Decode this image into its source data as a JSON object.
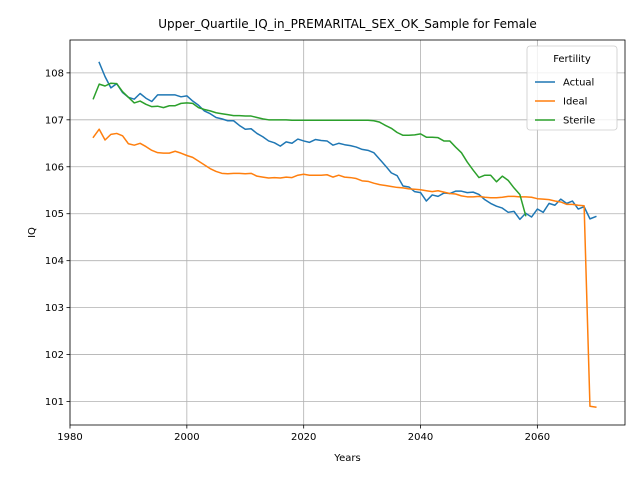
{
  "chart_data": {
    "type": "line",
    "title": "Upper_Quartile_IQ_in_PREMARITAL_SEX_OK_Sample for Female",
    "xlabel": "Years",
    "ylabel": "IQ",
    "xlim": [
      1980,
      2075
    ],
    "ylim": [
      100.5,
      108.7
    ],
    "x_ticks": [
      1980,
      2000,
      2020,
      2040,
      2060
    ],
    "y_ticks": [
      101,
      102,
      103,
      104,
      105,
      106,
      107,
      108
    ],
    "grid": true,
    "legend": {
      "title": "Fertility",
      "placement": "top-right"
    },
    "colors": {
      "Actual": "#1f77b4",
      "Ideal": "#ff7f0e",
      "Sterile": "#2ca02c"
    },
    "series": [
      {
        "name": "Actual",
        "x": [
          1985,
          1986,
          1987,
          1988,
          1989,
          1990,
          1991,
          1992,
          1993,
          1994,
          1995,
          1996,
          1997,
          1998,
          1999,
          2000,
          2001,
          2002,
          2003,
          2004,
          2005,
          2006,
          2007,
          2008,
          2009,
          2010,
          2011,
          2012,
          2013,
          2014,
          2015,
          2016,
          2017,
          2018,
          2019,
          2020,
          2021,
          2022,
          2023,
          2024,
          2025,
          2026,
          2027,
          2028,
          2029,
          2030,
          2031,
          2032,
          2033,
          2034,
          2035,
          2036,
          2037,
          2038,
          2039,
          2040,
          2041,
          2042,
          2043,
          2044,
          2045,
          2046,
          2047,
          2048,
          2049,
          2050,
          2051,
          2052,
          2053,
          2054,
          2055,
          2056,
          2057,
          2058,
          2059,
          2060,
          2061,
          2062,
          2063,
          2064,
          2065,
          2066,
          2067,
          2068,
          2069,
          2070
        ],
        "values": [
          108.22,
          107.92,
          107.68,
          107.77,
          107.58,
          107.48,
          107.44,
          107.56,
          107.46,
          107.39,
          107.53,
          107.53,
          107.53,
          107.53,
          107.49,
          107.51,
          107.4,
          107.31,
          107.19,
          107.13,
          107.05,
          107.02,
          106.98,
          106.98,
          106.88,
          106.8,
          106.81,
          106.71,
          106.64,
          106.55,
          106.51,
          106.44,
          106.53,
          106.5,
          106.59,
          106.55,
          106.52,
          106.58,
          106.56,
          106.55,
          106.46,
          106.5,
          106.47,
          106.45,
          106.42,
          106.37,
          106.35,
          106.3,
          106.16,
          106.02,
          105.87,
          105.81,
          105.59,
          105.57,
          105.47,
          105.45,
          105.27,
          105.4,
          105.37,
          105.44,
          105.43,
          105.48,
          105.48,
          105.45,
          105.46,
          105.41,
          105.3,
          105.22,
          105.16,
          105.12,
          105.03,
          105.05,
          104.88,
          105.01,
          104.93,
          105.1,
          105.03,
          105.22,
          105.18,
          105.31,
          105.22,
          105.27,
          105.1,
          105.15,
          104.89,
          104.94
        ]
      },
      {
        "name": "Ideal",
        "x": [
          1984,
          1985,
          1986,
          1987,
          1988,
          1989,
          1990,
          1991,
          1992,
          1993,
          1994,
          1995,
          1996,
          1997,
          1998,
          1999,
          2000,
          2001,
          2002,
          2003,
          2004,
          2005,
          2006,
          2007,
          2008,
          2009,
          2010,
          2011,
          2012,
          2013,
          2014,
          2015,
          2016,
          2017,
          2018,
          2019,
          2020,
          2021,
          2022,
          2023,
          2024,
          2025,
          2026,
          2027,
          2028,
          2029,
          2030,
          2031,
          2032,
          2033,
          2034,
          2035,
          2036,
          2037,
          2038,
          2039,
          2040,
          2041,
          2042,
          2043,
          2044,
          2045,
          2046,
          2047,
          2048,
          2049,
          2050,
          2051,
          2052,
          2053,
          2054,
          2055,
          2056,
          2057,
          2058,
          2059,
          2060,
          2061,
          2062,
          2063,
          2064,
          2065,
          2066,
          2067,
          2068,
          2069,
          2070
        ],
        "values": [
          106.63,
          106.8,
          106.57,
          106.69,
          106.71,
          106.66,
          106.49,
          106.46,
          106.5,
          106.43,
          106.35,
          106.3,
          106.29,
          106.29,
          106.33,
          106.29,
          106.24,
          106.2,
          106.12,
          106.04,
          105.96,
          105.9,
          105.86,
          105.85,
          105.86,
          105.86,
          105.85,
          105.86,
          105.8,
          105.78,
          105.76,
          105.77,
          105.76,
          105.78,
          105.77,
          105.82,
          105.84,
          105.82,
          105.82,
          105.82,
          105.83,
          105.78,
          105.82,
          105.78,
          105.77,
          105.75,
          105.7,
          105.69,
          105.65,
          105.62,
          105.6,
          105.58,
          105.56,
          105.55,
          105.53,
          105.52,
          105.51,
          105.49,
          105.47,
          105.49,
          105.46,
          105.43,
          105.42,
          105.38,
          105.36,
          105.36,
          105.37,
          105.35,
          105.34,
          105.34,
          105.35,
          105.37,
          105.37,
          105.36,
          105.36,
          105.35,
          105.32,
          105.31,
          105.3,
          105.27,
          105.25,
          105.2,
          105.2,
          105.18,
          105.17,
          100.9,
          100.88
        ]
      },
      {
        "name": "Sterile",
        "x": [
          1984,
          1985,
          1986,
          1987,
          1988,
          1989,
          1990,
          1991,
          1992,
          1993,
          1994,
          1995,
          1996,
          1997,
          1998,
          1999,
          2000,
          2001,
          2002,
          2003,
          2004,
          2005,
          2006,
          2007,
          2008,
          2009,
          2010,
          2011,
          2012,
          2013,
          2014,
          2015,
          2016,
          2017,
          2018,
          2019,
          2020,
          2021,
          2022,
          2023,
          2024,
          2025,
          2026,
          2027,
          2028,
          2029,
          2030,
          2031,
          2032,
          2033,
          2034,
          2035,
          2036,
          2037,
          2038,
          2039,
          2040,
          2041,
          2042,
          2043,
          2044,
          2045,
          2046,
          2047,
          2048,
          2049,
          2050,
          2051,
          2052,
          2053,
          2054,
          2055,
          2056,
          2057,
          2058
        ],
        "values": [
          107.45,
          107.76,
          107.72,
          107.78,
          107.77,
          107.6,
          107.48,
          107.36,
          107.4,
          107.33,
          107.28,
          107.29,
          107.26,
          107.3,
          107.3,
          107.35,
          107.36,
          107.35,
          107.26,
          107.22,
          107.19,
          107.15,
          107.13,
          107.11,
          107.09,
          107.09,
          107.08,
          107.08,
          107.05,
          107.02,
          107.0,
          107.0,
          107.0,
          107.0,
          106.99,
          106.99,
          106.99,
          106.99,
          106.99,
          106.99,
          106.99,
          106.99,
          106.99,
          106.99,
          106.99,
          106.99,
          106.99,
          106.99,
          106.98,
          106.95,
          106.88,
          106.82,
          106.73,
          106.67,
          106.67,
          106.68,
          106.7,
          106.63,
          106.63,
          106.62,
          106.55,
          106.55,
          106.42,
          106.3,
          106.1,
          105.93,
          105.77,
          105.82,
          105.82,
          105.68,
          105.8,
          105.71,
          105.55,
          105.41,
          104.96
        ]
      }
    ]
  }
}
